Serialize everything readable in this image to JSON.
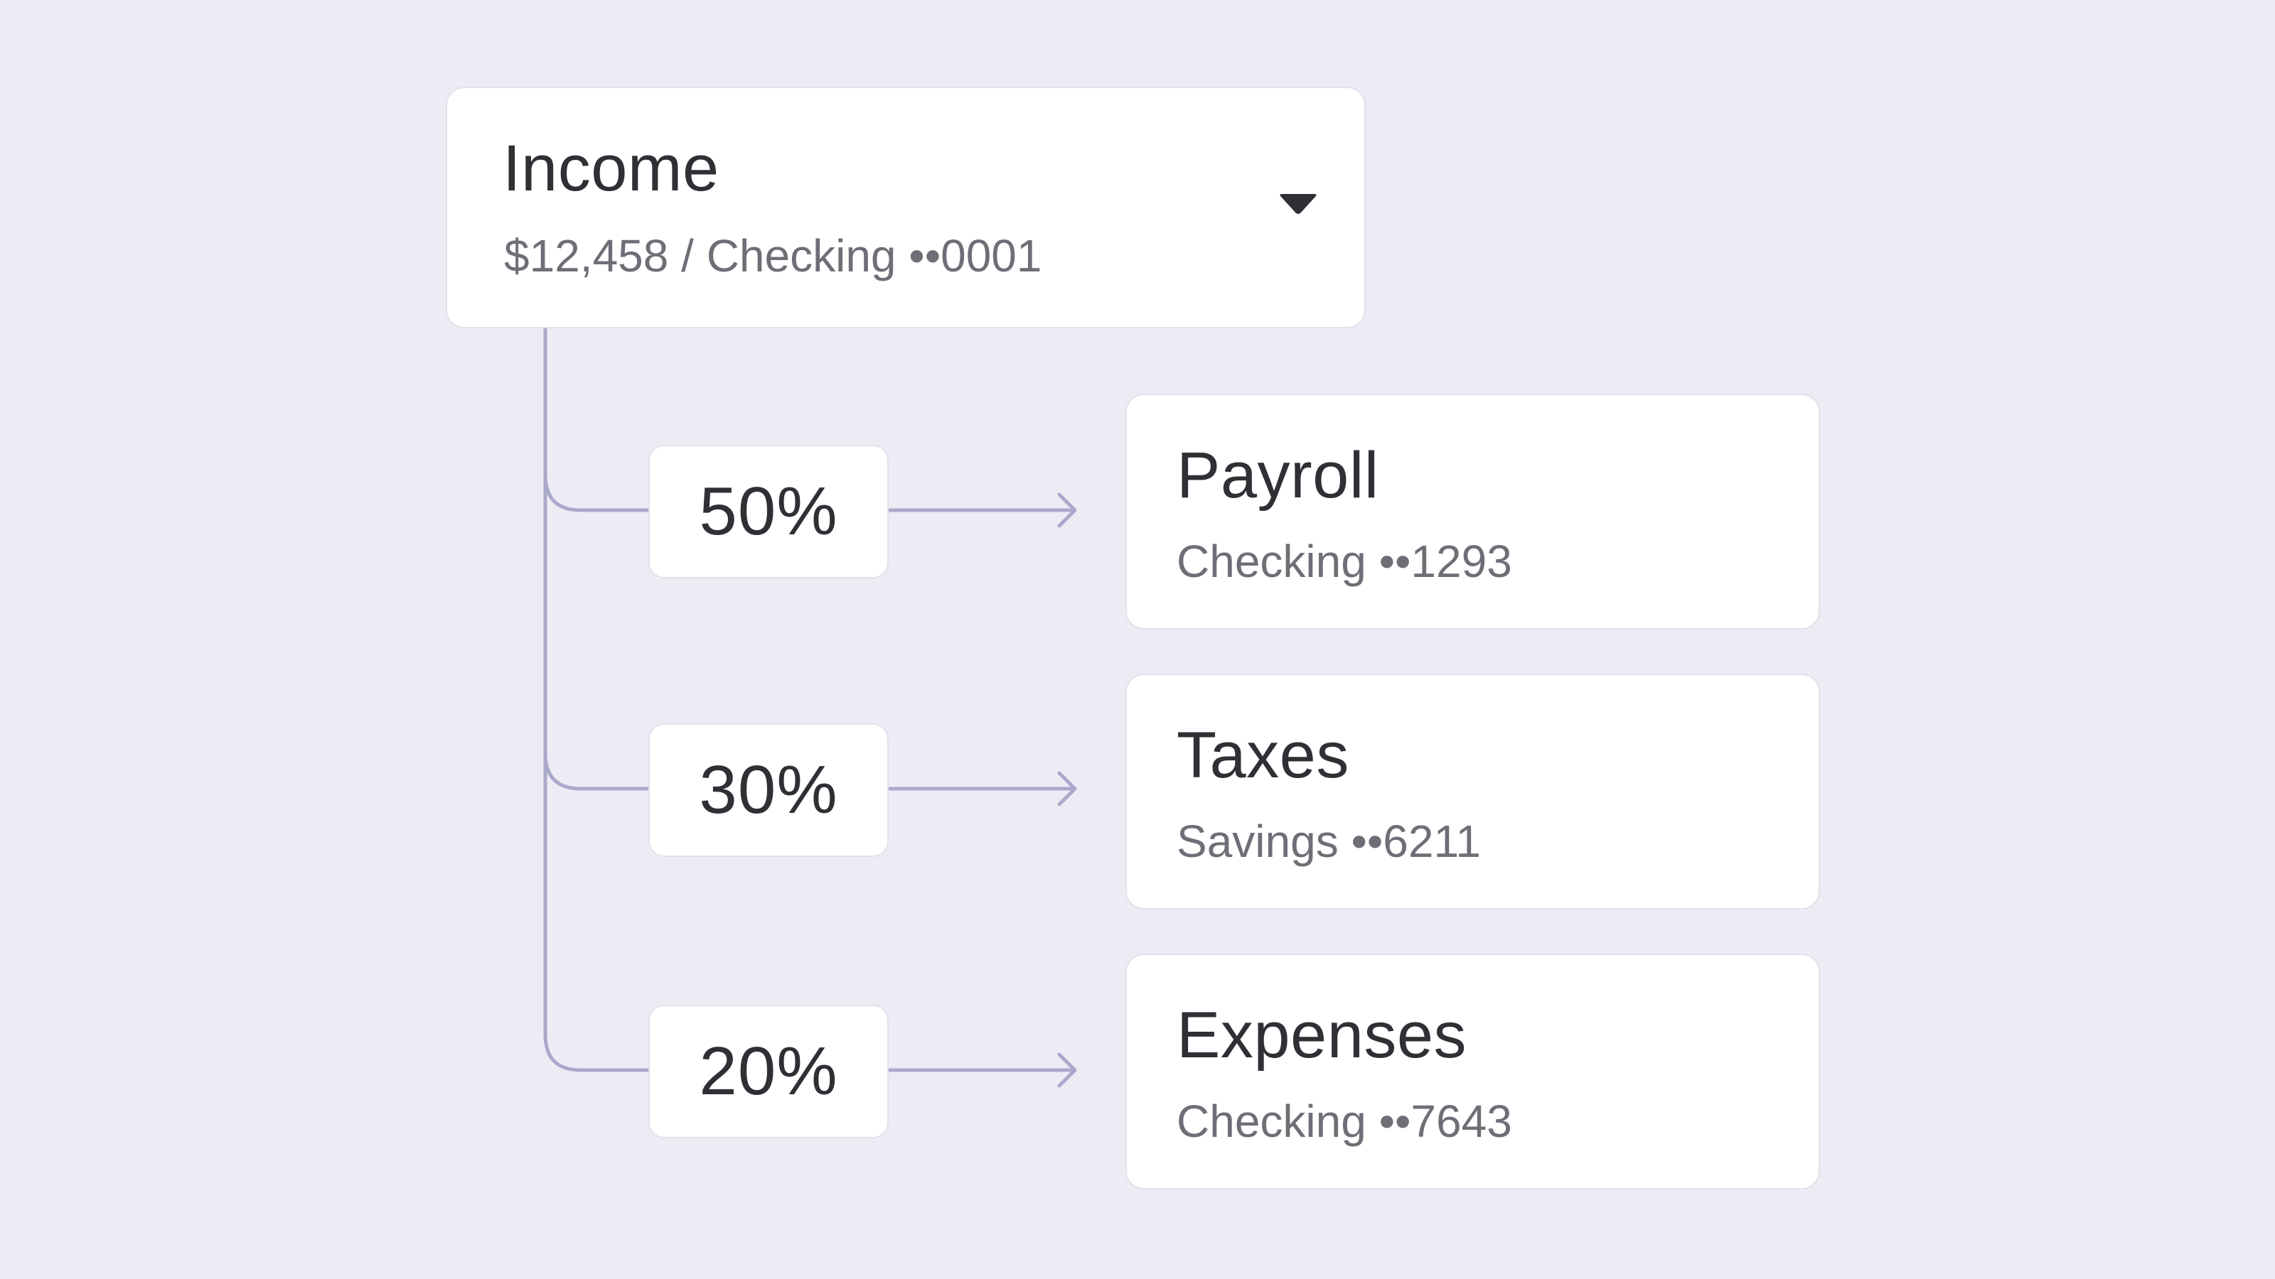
{
  "source": {
    "title": "Income",
    "subtitle": "$12,458 / Checking ••0001",
    "dropdown_icon": "caret-down-icon"
  },
  "colors": {
    "background": "#EDECF5",
    "card": "#FFFFFF",
    "connector": "#ABA9CB",
    "text_primary": "#2F2F35",
    "text_secondary": "#6E6E76"
  },
  "splits": [
    {
      "percent": "50%",
      "destination": {
        "title": "Payroll",
        "subtitle": "Checking ••1293"
      }
    },
    {
      "percent": "30%",
      "destination": {
        "title": "Taxes",
        "subtitle": "Savings ••6211"
      }
    },
    {
      "percent": "20%",
      "destination": {
        "title": "Expenses",
        "subtitle": "Checking ••7643"
      }
    }
  ]
}
